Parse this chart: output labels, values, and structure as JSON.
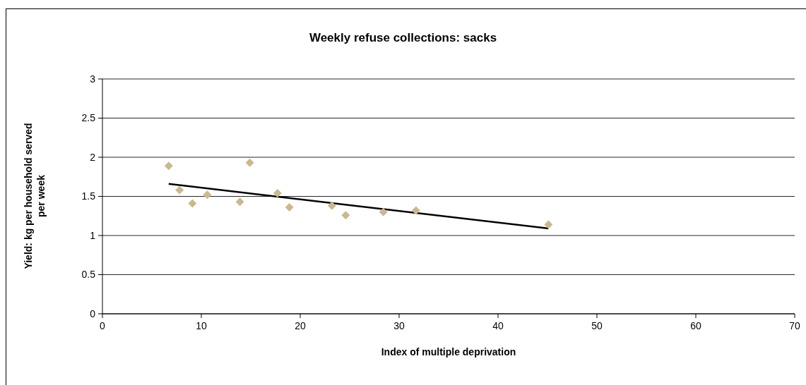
{
  "chart_data": {
    "type": "scatter",
    "title": "Weekly refuse collections: sacks",
    "xlabel": "Index of multiple deprivation",
    "ylabel": "Yield: kg per household served per week",
    "xlim": [
      0,
      70
    ],
    "xticks": [
      0,
      10,
      20,
      30,
      40,
      50,
      60,
      70
    ],
    "ylim": [
      0,
      3
    ],
    "yticks": [
      0,
      0.5,
      1,
      1.5,
      2,
      2.5,
      3
    ],
    "grid": "y",
    "series": [
      {
        "color": "#c8b992",
        "marker": "diamond",
        "x": [
          6.7,
          7.8,
          9.1,
          10.6,
          13.9,
          14.9,
          17.7,
          18.9,
          23.2,
          24.6,
          28.4,
          31.7,
          45.1
        ],
        "values": [
          1.89,
          1.58,
          1.41,
          1.52,
          1.43,
          1.93,
          1.54,
          1.36,
          1.38,
          1.26,
          1.3,
          1.32,
          1.14
        ]
      },
      {
        "type": "line",
        "color": "#000000",
        "marker": "none",
        "x": [
          6.7,
          45.1
        ],
        "values": [
          1.66,
          1.09
        ]
      }
    ]
  }
}
